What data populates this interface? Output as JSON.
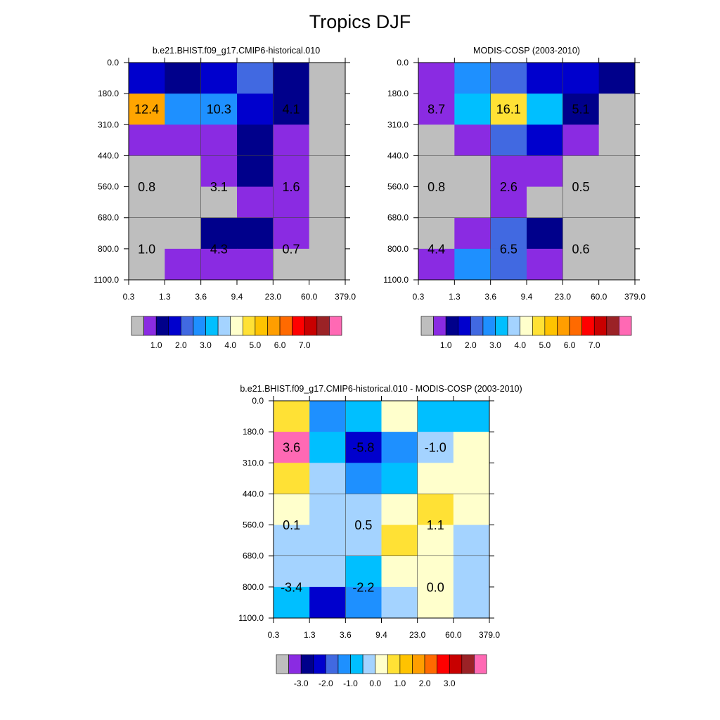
{
  "page_title": "Tropics DJF",
  "chart_data": [
    {
      "type": "heatmap",
      "title": "b.e21.BHIST.f09_g17.CMIP6-historical.010",
      "x_ticks": [
        "0.3",
        "1.3",
        "3.6",
        "9.4",
        "23.0",
        "60.0",
        "379.0"
      ],
      "y_ticks": [
        "0.0",
        "180.0",
        "310.0",
        "440.0",
        "560.0",
        "680.0",
        "800.0",
        "1100.0"
      ],
      "cells": [
        [
          "#0000cd",
          "#00008b",
          "#0000cd",
          "#4169e1",
          "#00008b",
          "#bebebe"
        ],
        [
          "#ffa500",
          "#1e90ff",
          "#1e90ff",
          "#0000cd",
          "#00008b",
          "#bebebe"
        ],
        [
          "#8a2be2",
          "#8a2be2",
          "#8a2be2",
          "#00008b",
          "#8a2be2",
          "#bebebe"
        ],
        [
          "#bebebe",
          "#bebebe",
          "#8a2be2",
          "#00008b",
          "#8a2be2",
          "#bebebe"
        ],
        [
          "#bebebe",
          "#bebebe",
          "#bebebe",
          "#8a2be2",
          "#8a2be2",
          "#bebebe"
        ],
        [
          "#bebebe",
          "#bebebe",
          "#00008b",
          "#00008b",
          "#8a2be2",
          "#bebebe"
        ],
        [
          "#bebebe",
          "#8a2be2",
          "#8a2be2",
          "#8a2be2",
          "#bebebe",
          "#bebebe"
        ]
      ],
      "annotations": [
        {
          "col": 0.5,
          "row": 1.5,
          "text": "12.4"
        },
        {
          "col": 2.5,
          "row": 1.5,
          "text": "10.3"
        },
        {
          "col": 4.5,
          "row": 1.5,
          "text": "4.1"
        },
        {
          "col": 0.5,
          "row": 4,
          "text": "0.8"
        },
        {
          "col": 2.5,
          "row": 4,
          "text": "3.1"
        },
        {
          "col": 4.5,
          "row": 4,
          "text": "1.6"
        },
        {
          "col": 0.5,
          "row": 6,
          "text": "1.0"
        },
        {
          "col": 2.5,
          "row": 6,
          "text": "4.3"
        },
        {
          "col": 4.5,
          "row": 6,
          "text": "0.7"
        }
      ],
      "colorbar": {
        "colors": [
          "#bebebe",
          "#8a2be2",
          "#00008b",
          "#0000cd",
          "#4169e1",
          "#1e90ff",
          "#00bfff",
          "#a4d3ff",
          "#ffffcc",
          "#ffe135",
          "#ffc300",
          "#ff9e00",
          "#ff6a00",
          "#ff0000",
          "#c80000",
          "#9b2226",
          "#ff69b4"
        ],
        "labels": [
          "1.0",
          "2.0",
          "3.0",
          "4.0",
          "5.0",
          "6.0",
          "7.0"
        ]
      }
    },
    {
      "type": "heatmap",
      "title": "MODIS-COSP (2003-2010)",
      "x_ticks": [
        "0.3",
        "1.3",
        "3.6",
        "9.4",
        "23.0",
        "60.0",
        "379.0"
      ],
      "y_ticks": [
        "0.0",
        "180.0",
        "310.0",
        "440.0",
        "560.0",
        "680.0",
        "800.0",
        "1100.0"
      ],
      "cells": [
        [
          "#8a2be2",
          "#1e90ff",
          "#4169e1",
          "#0000cd",
          "#0000cd",
          "#00008b"
        ],
        [
          "#8a2be2",
          "#00bfff",
          "#ffe135",
          "#00bfff",
          "#00008b",
          "#bebebe"
        ],
        [
          "#bebebe",
          "#8a2be2",
          "#4169e1",
          "#0000cd",
          "#8a2be2",
          "#bebebe"
        ],
        [
          "#bebebe",
          "#bebebe",
          "#8a2be2",
          "#8a2be2",
          "#bebebe",
          "#bebebe"
        ],
        [
          "#bebebe",
          "#bebebe",
          "#8a2be2",
          "#bebebe",
          "#bebebe",
          "#bebebe"
        ],
        [
          "#bebebe",
          "#8a2be2",
          "#4169e1",
          "#00008b",
          "#bebebe",
          "#bebebe"
        ],
        [
          "#8a2be2",
          "#1e90ff",
          "#4169e1",
          "#8a2be2",
          "#bebebe",
          "#bebebe"
        ]
      ],
      "annotations": [
        {
          "col": 0.5,
          "row": 1.5,
          "text": "8.7"
        },
        {
          "col": 2.5,
          "row": 1.5,
          "text": "16.1"
        },
        {
          "col": 4.5,
          "row": 1.5,
          "text": "5.1"
        },
        {
          "col": 0.5,
          "row": 4,
          "text": "0.8"
        },
        {
          "col": 2.5,
          "row": 4,
          "text": "2.6"
        },
        {
          "col": 4.5,
          "row": 4,
          "text": "0.5"
        },
        {
          "col": 0.5,
          "row": 6,
          "text": "4.4"
        },
        {
          "col": 2.5,
          "row": 6,
          "text": "6.5"
        },
        {
          "col": 4.5,
          "row": 6,
          "text": "0.6"
        }
      ],
      "colorbar": {
        "colors": [
          "#bebebe",
          "#8a2be2",
          "#00008b",
          "#0000cd",
          "#4169e1",
          "#1e90ff",
          "#00bfff",
          "#a4d3ff",
          "#ffffcc",
          "#ffe135",
          "#ffc300",
          "#ff9e00",
          "#ff6a00",
          "#ff0000",
          "#c80000",
          "#9b2226",
          "#ff69b4"
        ],
        "labels": [
          "1.0",
          "2.0",
          "3.0",
          "4.0",
          "5.0",
          "6.0",
          "7.0"
        ]
      }
    },
    {
      "type": "heatmap",
      "title": "b.e21.BHIST.f09_g17.CMIP6-historical.010 - MODIS-COSP (2003-2010)",
      "x_ticks": [
        "0.3",
        "1.3",
        "3.6",
        "9.4",
        "23.0",
        "60.0",
        "379.0"
      ],
      "y_ticks": [
        "0.0",
        "180.0",
        "310.0",
        "440.0",
        "560.0",
        "680.0",
        "800.0",
        "1100.0"
      ],
      "cells": [
        [
          "#ffe135",
          "#1e90ff",
          "#00bfff",
          "#ffffcc",
          "#00bfff",
          "#00bfff"
        ],
        [
          "#ff69b4",
          "#00bfff",
          "#0000cd",
          "#1e90ff",
          "#a4d3ff",
          "#ffffcc"
        ],
        [
          "#ffe135",
          "#a4d3ff",
          "#1e90ff",
          "#00bfff",
          "#ffffcc",
          "#ffffcc"
        ],
        [
          "#ffffcc",
          "#a4d3ff",
          "#a4d3ff",
          "#ffffcc",
          "#ffe135",
          "#ffffcc"
        ],
        [
          "#a4d3ff",
          "#a4d3ff",
          "#a4d3ff",
          "#ffe135",
          "#ffffcc",
          "#a4d3ff"
        ],
        [
          "#a4d3ff",
          "#a4d3ff",
          "#00bfff",
          "#ffffcc",
          "#ffffcc",
          "#a4d3ff"
        ],
        [
          "#00bfff",
          "#0000cd",
          "#1e90ff",
          "#a4d3ff",
          "#ffffcc",
          "#a4d3ff"
        ]
      ],
      "annotations": [
        {
          "col": 0.5,
          "row": 1.5,
          "text": "3.6"
        },
        {
          "col": 2.5,
          "row": 1.5,
          "text": "-5.8"
        },
        {
          "col": 4.5,
          "row": 1.5,
          "text": "-1.0"
        },
        {
          "col": 0.5,
          "row": 4,
          "text": "0.1"
        },
        {
          "col": 2.5,
          "row": 4,
          "text": "0.5"
        },
        {
          "col": 4.5,
          "row": 4,
          "text": "1.1"
        },
        {
          "col": 0.5,
          "row": 6,
          "text": "-3.4"
        },
        {
          "col": 2.5,
          "row": 6,
          "text": "-2.2"
        },
        {
          "col": 4.5,
          "row": 6,
          "text": "0.0"
        }
      ],
      "colorbar": {
        "colors": [
          "#bebebe",
          "#8a2be2",
          "#00008b",
          "#0000cd",
          "#4169e1",
          "#1e90ff",
          "#00bfff",
          "#a4d3ff",
          "#ffffcc",
          "#ffe135",
          "#ffc300",
          "#ff9e00",
          "#ff6a00",
          "#ff0000",
          "#c80000",
          "#9b2226",
          "#ff69b4"
        ],
        "labels": [
          "-3.0",
          "-2.0",
          "-1.0",
          "0.0",
          "1.0",
          "2.0",
          "3.0"
        ]
      }
    }
  ]
}
